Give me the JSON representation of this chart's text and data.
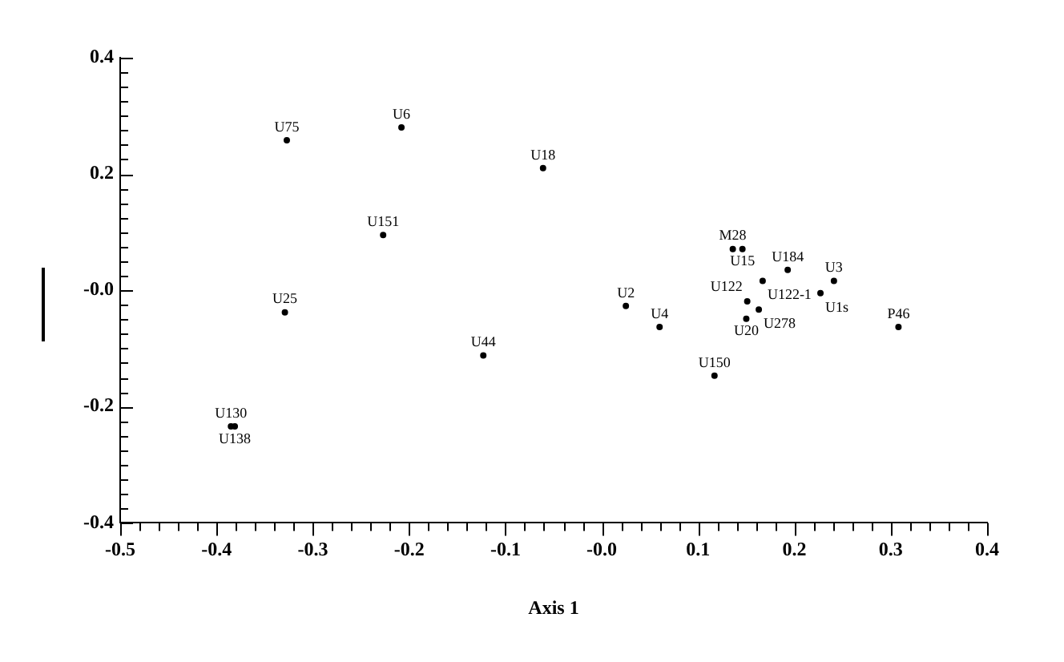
{
  "chart_data": {
    "type": "scatter",
    "xlabel": "Axis 1",
    "marker": "circle",
    "grid": false,
    "legend": false,
    "xlim": [
      -0.5,
      0.4
    ],
    "ylim": [
      -0.4,
      0.4
    ],
    "xticks": [
      -0.5,
      {
        "value": -0.48,
        "label": null
      },
      {
        "value": -0.46,
        "label": null
      },
      {
        "value": -0.44,
        "label": null
      },
      {
        "value": -0.42,
        "label": null
      },
      -0.4,
      {
        "value": -0.38,
        "label": null
      },
      {
        "value": -0.36,
        "label": null
      },
      {
        "value": -0.34,
        "label": null
      },
      {
        "value": -0.32,
        "label": null
      },
      -0.3,
      {
        "value": -0.28,
        "label": null
      },
      {
        "value": -0.26,
        "label": null
      },
      {
        "value": -0.24,
        "label": null
      },
      {
        "value": -0.22,
        "label": null
      },
      -0.2,
      {
        "value": -0.18,
        "label": null
      },
      {
        "value": -0.16,
        "label": null
      },
      {
        "value": -0.14,
        "label": null
      },
      {
        "value": -0.12,
        "label": null
      },
      -0.1,
      {
        "value": -0.08,
        "label": null
      },
      {
        "value": -0.06,
        "label": null
      },
      {
        "value": -0.04,
        "label": null
      },
      {
        "value": -0.02,
        "label": null
      },
      {
        "value": 0,
        "label": "-0.0"
      },
      {
        "value": 0.02,
        "label": null
      },
      {
        "value": 0.04,
        "label": null
      },
      {
        "value": 0.06,
        "label": null
      },
      {
        "value": 0.08,
        "label": null
      },
      0.1,
      {
        "value": 0.12,
        "label": null
      },
      {
        "value": 0.14,
        "label": null
      },
      {
        "value": 0.16,
        "label": null
      },
      {
        "value": 0.18,
        "label": null
      },
      0.2,
      {
        "value": 0.22,
        "label": null
      },
      {
        "value": 0.24,
        "label": null
      },
      {
        "value": 0.26,
        "label": null
      },
      {
        "value": 0.28,
        "label": null
      },
      0.3,
      {
        "value": 0.32,
        "label": null
      },
      {
        "value": 0.34,
        "label": null
      },
      {
        "value": 0.36,
        "label": null
      },
      {
        "value": 0.38,
        "label": null
      },
      0.4
    ],
    "yticks": [
      -0.4,
      {
        "value": -0.375,
        "label": null
      },
      {
        "value": -0.35,
        "label": null
      },
      {
        "value": -0.325,
        "label": null
      },
      {
        "value": -0.3,
        "label": null
      },
      {
        "value": -0.275,
        "label": null
      },
      {
        "value": -0.25,
        "label": null
      },
      {
        "value": -0.225,
        "label": null
      },
      -0.2,
      {
        "value": -0.175,
        "label": null
      },
      {
        "value": -0.15,
        "label": null
      },
      {
        "value": -0.125,
        "label": null
      },
      {
        "value": -0.1,
        "label": null
      },
      {
        "value": -0.075,
        "label": null
      },
      {
        "value": -0.05,
        "label": null
      },
      {
        "value": -0.025,
        "label": null
      },
      {
        "value": 0,
        "label": "-0.0"
      },
      {
        "value": 0.025,
        "label": null
      },
      {
        "value": 0.05,
        "label": null
      },
      {
        "value": 0.075,
        "label": null
      },
      {
        "value": 0.1,
        "label": null
      },
      {
        "value": 0.125,
        "label": null
      },
      {
        "value": 0.15,
        "label": null
      },
      {
        "value": 0.175,
        "label": null
      },
      0.2,
      {
        "value": 0.225,
        "label": null
      },
      {
        "value": 0.25,
        "label": null
      },
      {
        "value": 0.275,
        "label": null
      },
      {
        "value": 0.3,
        "label": null
      },
      {
        "value": 0.325,
        "label": null
      },
      {
        "value": 0.35,
        "label": null
      },
      {
        "value": 0.375,
        "label": null
      },
      0.4
    ],
    "series": [
      {
        "name": "U75",
        "color": "#000000",
        "x": [
          -0.327
        ],
        "values": [
          0.258
        ]
      },
      {
        "name": "U6",
        "color": "#000000",
        "x": [
          -0.208
        ],
        "values": [
          0.28
        ]
      },
      {
        "name": "U18",
        "color": "#000000",
        "x": [
          -0.061
        ],
        "values": [
          0.21
        ]
      },
      {
        "name": "U151",
        "color": "#000000",
        "x": [
          -0.227
        ],
        "values": [
          0.095
        ]
      },
      {
        "name": "U25",
        "color": "#000000",
        "x": [
          -0.329
        ],
        "values": [
          -0.038
        ]
      },
      {
        "name": "U44",
        "color": "#000000",
        "x": [
          -0.123
        ],
        "values": [
          -0.112
        ]
      },
      {
        "name": "U130",
        "color": "#000000",
        "x": [
          -0.385
        ],
        "values": [
          -0.234
        ]
      },
      {
        "name": "U138",
        "color": "#000000",
        "x": [
          -0.381
        ],
        "values": [
          -0.234
        ]
      },
      {
        "name": "M28",
        "color": "#000000",
        "x": [
          0.136
        ],
        "values": [
          0.071
        ]
      },
      {
        "name": "U15",
        "color": "#000000",
        "x": [
          0.146
        ],
        "values": [
          0.071
        ]
      },
      {
        "name": "U184",
        "color": "#000000",
        "x": [
          0.193
        ],
        "values": [
          0.035
        ]
      },
      {
        "name": "U122-1",
        "color": "#000000",
        "x": [
          0.167
        ],
        "values": [
          0.016
        ]
      },
      {
        "name": "U3",
        "color": "#000000",
        "x": [
          0.241
        ],
        "values": [
          0.016
        ]
      },
      {
        "name": "U1s",
        "color": "#000000",
        "x": [
          0.227
        ],
        "values": [
          -0.005
        ]
      },
      {
        "name": "U2",
        "color": "#000000",
        "x": [
          0.025
        ],
        "values": [
          -0.027
        ]
      },
      {
        "name": "U122",
        "color": "#000000",
        "x": [
          0.151
        ],
        "values": [
          -0.019
        ]
      },
      {
        "name": "U278",
        "color": "#000000",
        "x": [
          0.163
        ],
        "values": [
          -0.033
        ]
      },
      {
        "name": "U20",
        "color": "#000000",
        "x": [
          0.15
        ],
        "values": [
          -0.049
        ]
      },
      {
        "name": "U4",
        "color": "#000000",
        "x": [
          0.06
        ],
        "values": [
          -0.063
        ]
      },
      {
        "name": "P46",
        "color": "#000000",
        "x": [
          0.308
        ],
        "values": [
          -0.063
        ]
      },
      {
        "name": "U150",
        "color": "#000000",
        "x": [
          0.117
        ],
        "values": [
          -0.147
        ]
      }
    ]
  }
}
